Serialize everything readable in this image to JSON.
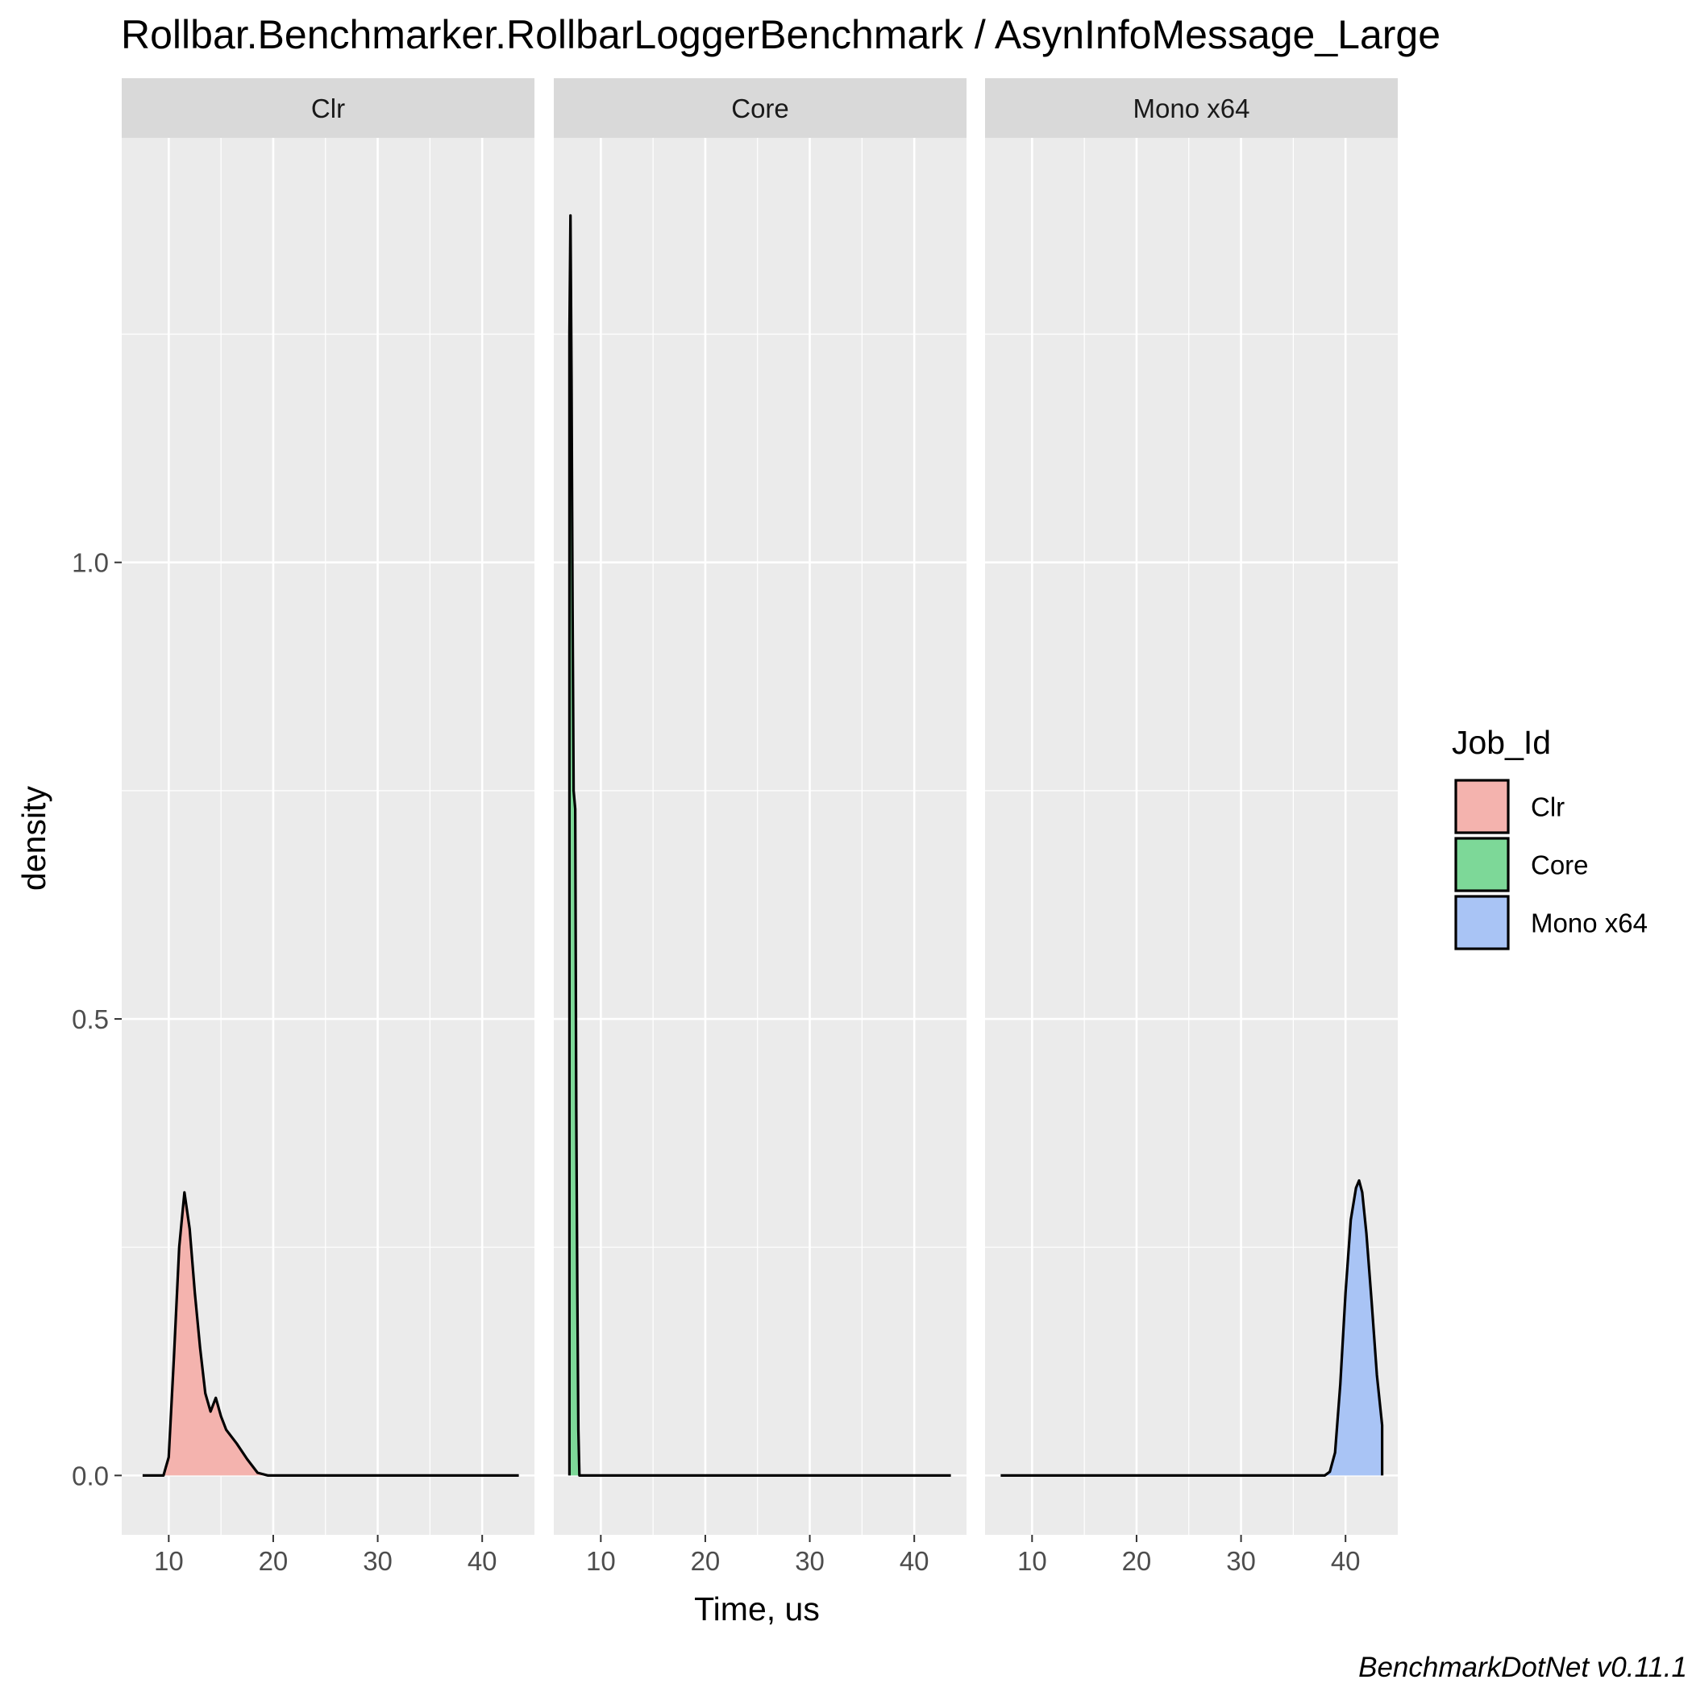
{
  "chart_data": {
    "type": "area",
    "subtype": "density",
    "title": "Rollbar.Benchmarker.RollbarLoggerBenchmark / AsynInfoMessage_Large",
    "xlabel": "Time, us",
    "ylabel": "density",
    "caption": "BenchmarkDotNet v0.11.1",
    "xlim": [
      5.5,
      45
    ],
    "ylim": [
      -0.065,
      1.465
    ],
    "x_ticks": [
      10,
      20,
      30,
      40
    ],
    "x_tick_labels": [
      "10",
      "20",
      "30",
      "40"
    ],
    "y_ticks": [
      0.0,
      0.5,
      1.0
    ],
    "y_tick_labels": [
      "0.0",
      "0.5",
      "1.0"
    ],
    "grid": true,
    "legend": {
      "title": "Job_Id",
      "position": "right",
      "entries": [
        "Clr",
        "Core",
        "Mono x64"
      ]
    },
    "panels": [
      {
        "strip_label": "Clr",
        "fill": "#F4B3AE",
        "series": [
          {
            "x": 7.5,
            "y": 0
          },
          {
            "x": 9.5,
            "y": 0
          },
          {
            "x": 10.0,
            "y": 0.02
          },
          {
            "x": 10.5,
            "y": 0.13
          },
          {
            "x": 11.0,
            "y": 0.25
          },
          {
            "x": 11.5,
            "y": 0.31
          },
          {
            "x": 12.0,
            "y": 0.27
          },
          {
            "x": 12.5,
            "y": 0.2
          },
          {
            "x": 13.0,
            "y": 0.14
          },
          {
            "x": 13.5,
            "y": 0.09
          },
          {
            "x": 14.0,
            "y": 0.07
          },
          {
            "x": 14.5,
            "y": 0.085
          },
          {
            "x": 15.0,
            "y": 0.065
          },
          {
            "x": 15.5,
            "y": 0.05
          },
          {
            "x": 16.5,
            "y": 0.035
          },
          {
            "x": 17.5,
            "y": 0.018
          },
          {
            "x": 18.5,
            "y": 0.003
          },
          {
            "x": 19.5,
            "y": 0
          },
          {
            "x": 43.5,
            "y": 0
          }
        ]
      },
      {
        "strip_label": "Core",
        "fill": "#7DD898",
        "series": [
          {
            "x": 7.0,
            "y": 0
          },
          {
            "x": 7.0,
            "y": 1.25
          },
          {
            "x": 7.1,
            "y": 1.38
          },
          {
            "x": 7.2,
            "y": 1.2
          },
          {
            "x": 7.3,
            "y": 0.95
          },
          {
            "x": 7.4,
            "y": 0.75
          },
          {
            "x": 7.55,
            "y": 0.73
          },
          {
            "x": 7.65,
            "y": 0.4
          },
          {
            "x": 7.75,
            "y": 0.2
          },
          {
            "x": 7.85,
            "y": 0.05
          },
          {
            "x": 7.95,
            "y": 0
          },
          {
            "x": 43.5,
            "y": 0
          }
        ]
      },
      {
        "strip_label": "Mono x64",
        "fill": "#A9C4F5",
        "series": [
          {
            "x": 7.0,
            "y": 0
          },
          {
            "x": 38.0,
            "y": 0
          },
          {
            "x": 38.5,
            "y": 0.004
          },
          {
            "x": 39.0,
            "y": 0.025
          },
          {
            "x": 39.5,
            "y": 0.1
          },
          {
            "x": 40.0,
            "y": 0.2
          },
          {
            "x": 40.5,
            "y": 0.28
          },
          {
            "x": 41.0,
            "y": 0.315
          },
          {
            "x": 41.3,
            "y": 0.323
          },
          {
            "x": 41.6,
            "y": 0.31
          },
          {
            "x": 42.0,
            "y": 0.265
          },
          {
            "x": 42.5,
            "y": 0.19
          },
          {
            "x": 43.0,
            "y": 0.11
          },
          {
            "x": 43.5,
            "y": 0.055
          },
          {
            "x": 43.5,
            "y": 0
          }
        ]
      }
    ]
  }
}
